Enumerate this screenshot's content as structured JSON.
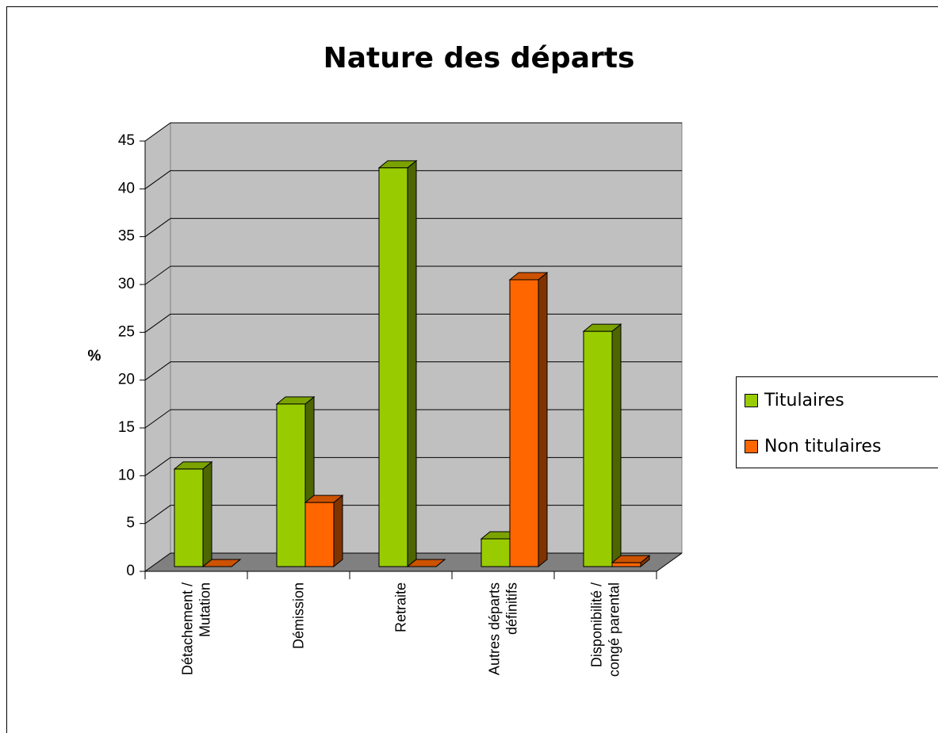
{
  "chart_data": {
    "type": "bar3d",
    "title": "Nature des départs",
    "y_label": "%",
    "categories": [
      "Détachement / Mutation",
      "Démission",
      "Retraite",
      "Autres départs définitifs",
      "Disponibilité / congé parental"
    ],
    "series": [
      {
        "name": "Titulaires",
        "color": "#99cc00",
        "values": [
          10.2,
          17,
          41.7,
          2.9,
          24.6
        ]
      },
      {
        "name": "Non titulaires",
        "color": "#ff6600",
        "values": [
          0,
          6.7,
          0,
          30,
          0.4
        ]
      }
    ],
    "ylim": [
      0,
      45
    ],
    "yticks": [
      0,
      5,
      10,
      15,
      20,
      25,
      30,
      35,
      40,
      45
    ],
    "grid": true,
    "legend": "right"
  }
}
